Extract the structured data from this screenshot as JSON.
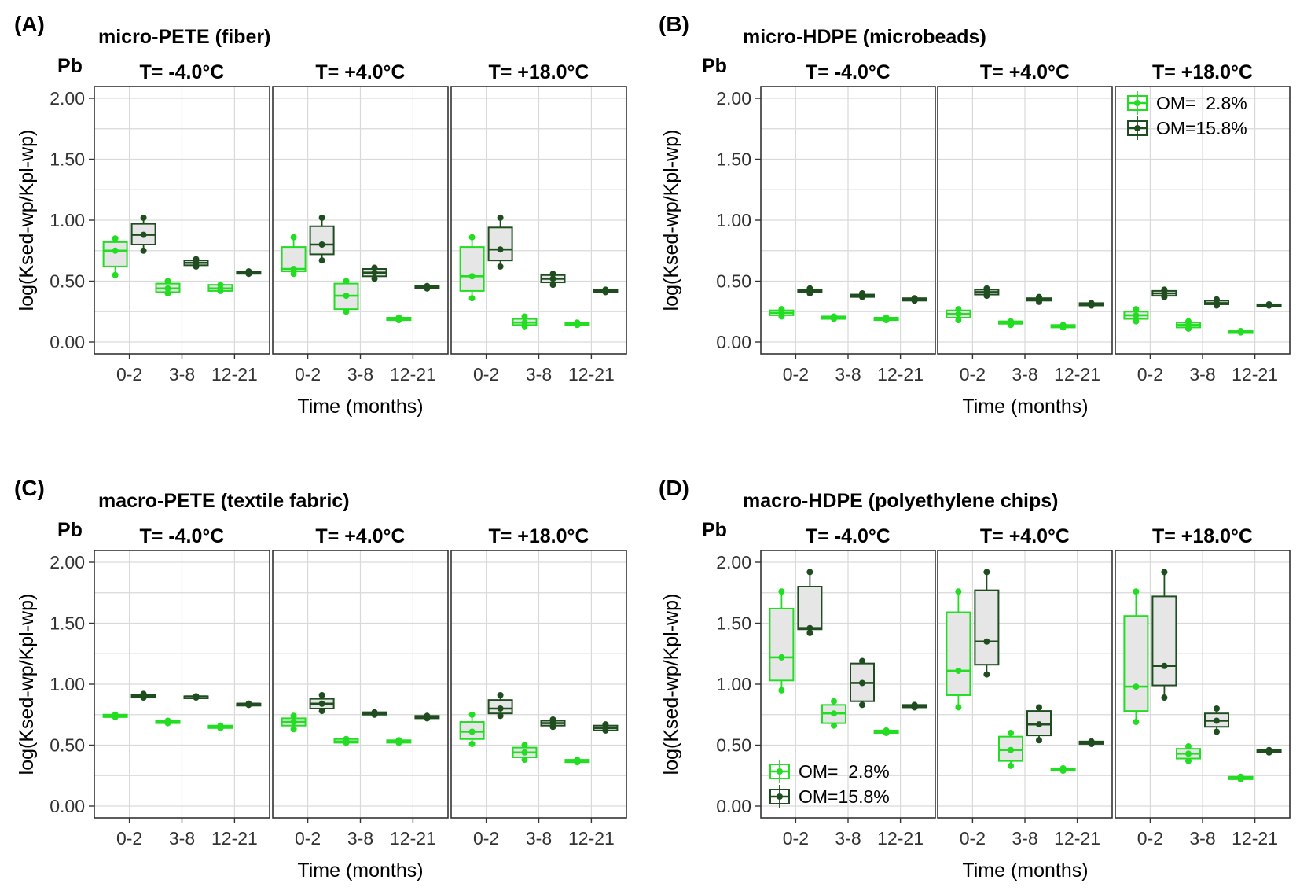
{
  "chart_data": [
    {
      "type": "box",
      "panel_label": "(A)",
      "title": "micro-PETE  (fiber)",
      "element": "Pb",
      "xlabel": "Time (months)",
      "ylabel": "log(Ksed-wp/Kpl-wp)",
      "ylim": [
        -0.1,
        2.1
      ],
      "yticks": [
        "0.00",
        "0.50",
        "1.00",
        "1.50",
        "2.00"
      ],
      "ytick_values": [
        0,
        0.5,
        1,
        1.5,
        2
      ],
      "categories": [
        "0-2",
        "3-8",
        "12-21"
      ],
      "legend": null,
      "facets": [
        {
          "label": "T= -4.0°C",
          "series": [
            {
              "name": "OM=  2.8%",
              "boxes": [
                [
                  0.62,
                  0.75,
                  0.82,
                  0.55,
                  0.85
                ],
                [
                  0.41,
                  0.44,
                  0.48,
                  0.4,
                  0.5
                ],
                [
                  0.42,
                  0.44,
                  0.47,
                  0.42,
                  0.47
                ]
              ]
            },
            {
              "name": "OM=15.8%",
              "boxes": [
                [
                  0.8,
                  0.88,
                  0.97,
                  0.75,
                  1.02
                ],
                [
                  0.63,
                  0.65,
                  0.67,
                  0.62,
                  0.68
                ],
                [
                  0.56,
                  0.57,
                  0.58,
                  0.56,
                  0.58
                ]
              ]
            }
          ]
        },
        {
          "label": "T= +4.0°C",
          "series": [
            {
              "name": "OM=  2.8%",
              "boxes": [
                [
                  0.58,
                  0.6,
                  0.78,
                  0.56,
                  0.86
                ],
                [
                  0.27,
                  0.38,
                  0.48,
                  0.25,
                  0.5
                ],
                [
                  0.18,
                  0.19,
                  0.2,
                  0.18,
                  0.2
                ]
              ]
            },
            {
              "name": "OM=15.8%",
              "boxes": [
                [
                  0.72,
                  0.8,
                  0.95,
                  0.67,
                  1.02
                ],
                [
                  0.54,
                  0.57,
                  0.6,
                  0.52,
                  0.61
                ],
                [
                  0.44,
                  0.45,
                  0.46,
                  0.44,
                  0.46
                ]
              ]
            }
          ]
        },
        {
          "label": "T= +18.0°C",
          "series": [
            {
              "name": "OM=  2.8%",
              "boxes": [
                [
                  0.42,
                  0.54,
                  0.78,
                  0.36,
                  0.86
                ],
                [
                  0.14,
                  0.16,
                  0.19,
                  0.13,
                  0.21
                ],
                [
                  0.14,
                  0.15,
                  0.16,
                  0.14,
                  0.16
                ]
              ]
            },
            {
              "name": "OM=15.8%",
              "boxes": [
                [
                  0.67,
                  0.76,
                  0.94,
                  0.62,
                  1.02
                ],
                [
                  0.49,
                  0.52,
                  0.55,
                  0.47,
                  0.56
                ],
                [
                  0.41,
                  0.42,
                  0.43,
                  0.41,
                  0.43
                ]
              ]
            }
          ]
        }
      ]
    },
    {
      "type": "box",
      "panel_label": "(B)",
      "title": "micro-HDPE  (microbeads)",
      "element": "Pb",
      "xlabel": "Time (months)",
      "ylabel": "log(Ksed-wp/Kpl-wp)",
      "ylim": [
        -0.1,
        2.1
      ],
      "yticks": [
        "0.00",
        "0.50",
        "1.00",
        "1.50",
        "2.00"
      ],
      "ytick_values": [
        0,
        0.5,
        1,
        1.5,
        2
      ],
      "categories": [
        "0-2",
        "3-8",
        "12-21"
      ],
      "legend": {
        "position": "top-right",
        "facet": 2,
        "entries": [
          "OM=  2.8%",
          "OM=15.8%"
        ]
      },
      "facets": [
        {
          "label": "T= -4.0°C",
          "series": [
            {
              "name": "OM=  2.8%",
              "boxes": [
                [
                  0.22,
                  0.24,
                  0.26,
                  0.21,
                  0.27
                ],
                [
                  0.19,
                  0.2,
                  0.21,
                  0.19,
                  0.21
                ],
                [
                  0.18,
                  0.19,
                  0.2,
                  0.18,
                  0.2
                ]
              ]
            },
            {
              "name": "OM=15.8%",
              "boxes": [
                [
                  0.41,
                  0.42,
                  0.43,
                  0.4,
                  0.44
                ],
                [
                  0.37,
                  0.38,
                  0.39,
                  0.37,
                  0.4
                ],
                [
                  0.34,
                  0.35,
                  0.36,
                  0.34,
                  0.36
                ]
              ]
            }
          ]
        },
        {
          "label": "T= +4.0°C",
          "series": [
            {
              "name": "OM=  2.8%",
              "boxes": [
                [
                  0.2,
                  0.23,
                  0.26,
                  0.18,
                  0.27
                ],
                [
                  0.15,
                  0.16,
                  0.17,
                  0.14,
                  0.17
                ],
                [
                  0.12,
                  0.13,
                  0.14,
                  0.12,
                  0.14
                ]
              ]
            },
            {
              "name": "OM=15.8%",
              "boxes": [
                [
                  0.39,
                  0.41,
                  0.43,
                  0.38,
                  0.44
                ],
                [
                  0.34,
                  0.35,
                  0.36,
                  0.33,
                  0.37
                ],
                [
                  0.3,
                  0.31,
                  0.32,
                  0.3,
                  0.32
                ]
              ]
            }
          ]
        },
        {
          "label": "T= +18.0°C",
          "series": [
            {
              "name": "OM=  2.8%",
              "boxes": [
                [
                  0.19,
                  0.22,
                  0.25,
                  0.17,
                  0.27
                ],
                [
                  0.12,
                  0.14,
                  0.16,
                  0.11,
                  0.17
                ],
                [
                  0.08,
                  0.08,
                  0.09,
                  0.08,
                  0.09
                ]
              ]
            },
            {
              "name": "OM=15.8%",
              "boxes": [
                [
                  0.38,
                  0.4,
                  0.42,
                  0.37,
                  0.43
                ],
                [
                  0.31,
                  0.32,
                  0.34,
                  0.3,
                  0.35
                ],
                [
                  0.3,
                  0.3,
                  0.31,
                  0.3,
                  0.31
                ]
              ]
            }
          ]
        }
      ]
    },
    {
      "type": "box",
      "panel_label": "(C)",
      "title": "macro-PETE  (textile fabric)",
      "element": "Pb",
      "xlabel": "Time (months)",
      "ylabel": "log(Ksed-wp/Kpl-wp)",
      "ylim": [
        -0.1,
        2.1
      ],
      "yticks": [
        "0.00",
        "0.50",
        "1.00",
        "1.50",
        "2.00"
      ],
      "ytick_values": [
        0,
        0.5,
        1,
        1.5,
        2
      ],
      "categories": [
        "0-2",
        "3-8",
        "12-21"
      ],
      "legend": null,
      "facets": [
        {
          "label": "T= -4.0°C",
          "series": [
            {
              "name": "OM=  2.8%",
              "boxes": [
                [
                  0.73,
                  0.74,
                  0.75,
                  0.73,
                  0.75
                ],
                [
                  0.68,
                  0.69,
                  0.7,
                  0.68,
                  0.7
                ],
                [
                  0.64,
                  0.65,
                  0.66,
                  0.64,
                  0.66
                ]
              ]
            },
            {
              "name": "OM=15.8%",
              "boxes": [
                [
                  0.89,
                  0.9,
                  0.91,
                  0.89,
                  0.92
                ],
                [
                  0.89,
                  0.9,
                  0.9,
                  0.89,
                  0.9
                ],
                [
                  0.83,
                  0.84,
                  0.84,
                  0.83,
                  0.84
                ]
              ]
            }
          ]
        },
        {
          "label": "T= +4.0°C",
          "series": [
            {
              "name": "OM=  2.8%",
              "boxes": [
                [
                  0.66,
                  0.69,
                  0.72,
                  0.63,
                  0.74
                ],
                [
                  0.52,
                  0.53,
                  0.55,
                  0.52,
                  0.55
                ],
                [
                  0.52,
                  0.53,
                  0.54,
                  0.52,
                  0.54
                ]
              ]
            },
            {
              "name": "OM=15.8%",
              "boxes": [
                [
                  0.8,
                  0.84,
                  0.88,
                  0.78,
                  0.91
                ],
                [
                  0.75,
                  0.76,
                  0.77,
                  0.75,
                  0.77
                ],
                [
                  0.72,
                  0.73,
                  0.74,
                  0.72,
                  0.74
                ]
              ]
            }
          ]
        },
        {
          "label": "T= +18.0°C",
          "series": [
            {
              "name": "OM=  2.8%",
              "boxes": [
                [
                  0.55,
                  0.61,
                  0.69,
                  0.51,
                  0.75
                ],
                [
                  0.4,
                  0.44,
                  0.48,
                  0.38,
                  0.5
                ],
                [
                  0.36,
                  0.37,
                  0.38,
                  0.36,
                  0.38
                ]
              ]
            },
            {
              "name": "OM=15.8%",
              "boxes": [
                [
                  0.76,
                  0.8,
                  0.87,
                  0.74,
                  0.91
                ],
                [
                  0.66,
                  0.68,
                  0.7,
                  0.65,
                  0.71
                ],
                [
                  0.62,
                  0.64,
                  0.66,
                  0.62,
                  0.67
                ]
              ]
            }
          ]
        }
      ]
    },
    {
      "type": "box",
      "panel_label": "(D)",
      "title": "macro-HDPE  (polyethylene chips)",
      "element": "Pb",
      "xlabel": "Time (months)",
      "ylabel": "log(Ksed-wp/Kpl-wp)",
      "ylim": [
        -0.1,
        2.1
      ],
      "yticks": [
        "0.00",
        "0.50",
        "1.00",
        "1.50",
        "2.00"
      ],
      "ytick_values": [
        0,
        0.5,
        1,
        1.5,
        2
      ],
      "categories": [
        "0-2",
        "3-8",
        "12-21"
      ],
      "legend": {
        "position": "bottom-left",
        "facet": 0,
        "entries": [
          "OM=  2.8%",
          "OM=15.8%"
        ]
      },
      "facets": [
        {
          "label": "T= -4.0°C",
          "series": [
            {
              "name": "OM=  2.8%",
              "boxes": [
                [
                  1.03,
                  1.22,
                  1.62,
                  0.95,
                  1.76
                ],
                [
                  0.68,
                  0.76,
                  0.83,
                  0.66,
                  0.86
                ],
                [
                  0.6,
                  0.61,
                  0.62,
                  0.6,
                  0.62
                ]
              ]
            },
            {
              "name": "OM=15.8%",
              "boxes": [
                [
                  1.45,
                  1.46,
                  1.8,
                  1.42,
                  1.92
                ],
                [
                  0.86,
                  1.01,
                  1.17,
                  0.83,
                  1.19
                ],
                [
                  0.81,
                  0.82,
                  0.83,
                  0.81,
                  0.83
                ]
              ]
            }
          ]
        },
        {
          "label": "T= +4.0°C",
          "series": [
            {
              "name": "OM=  2.8%",
              "boxes": [
                [
                  0.91,
                  1.11,
                  1.59,
                  0.81,
                  1.76
                ],
                [
                  0.37,
                  0.46,
                  0.57,
                  0.33,
                  0.6
                ],
                [
                  0.29,
                  0.3,
                  0.31,
                  0.29,
                  0.31
                ]
              ]
            },
            {
              "name": "OM=15.8%",
              "boxes": [
                [
                  1.16,
                  1.35,
                  1.77,
                  1.08,
                  1.92
                ],
                [
                  0.58,
                  0.67,
                  0.78,
                  0.54,
                  0.81
                ],
                [
                  0.51,
                  0.52,
                  0.53,
                  0.51,
                  0.53
                ]
              ]
            }
          ]
        },
        {
          "label": "T= +18.0°C",
          "series": [
            {
              "name": "OM=  2.8%",
              "boxes": [
                [
                  0.78,
                  0.98,
                  1.56,
                  0.69,
                  1.76
                ],
                [
                  0.39,
                  0.43,
                  0.47,
                  0.37,
                  0.49
                ],
                [
                  0.22,
                  0.23,
                  0.24,
                  0.22,
                  0.24
                ]
              ]
            },
            {
              "name": "OM=15.8%",
              "boxes": [
                [
                  0.99,
                  1.15,
                  1.72,
                  0.89,
                  1.92
                ],
                [
                  0.65,
                  0.7,
                  0.76,
                  0.61,
                  0.8
                ],
                [
                  0.44,
                  0.45,
                  0.46,
                  0.44,
                  0.46
                ]
              ]
            }
          ]
        }
      ]
    }
  ],
  "colors": {
    "series": [
      "#22dd22",
      "#1f4d1f"
    ],
    "box_fill": "#e6e6e6",
    "grid": "#d9d9d9",
    "frame": "#333333"
  }
}
